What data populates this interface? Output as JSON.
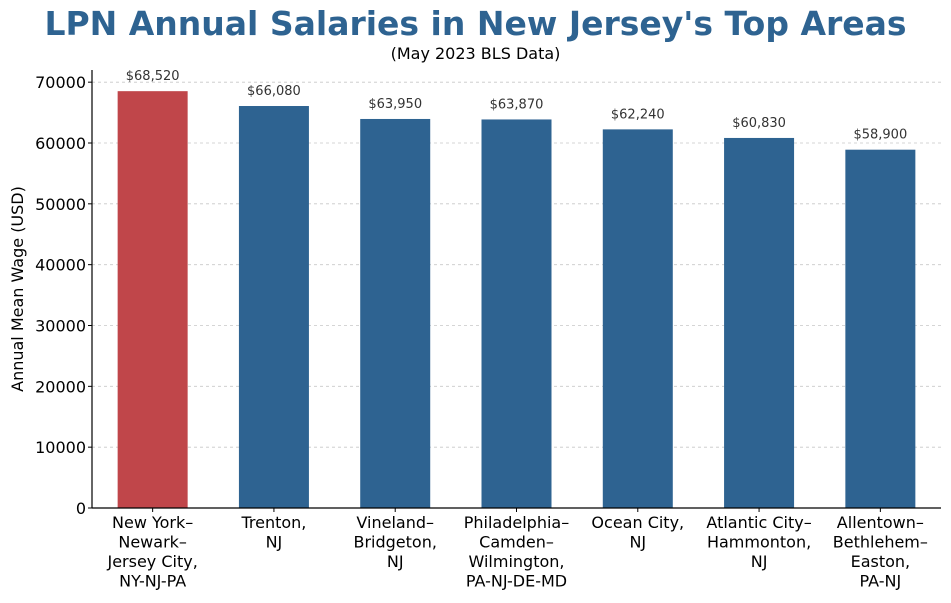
{
  "title": "LPN Annual Salaries in New Jersey's Top Areas",
  "subtitle": "(May 2023 BLS Data)",
  "chart_data": {
    "type": "bar",
    "categories": [
      [
        "New York–",
        "Newark–",
        "Jersey City,",
        "NY-NJ-PA"
      ],
      [
        "Trenton,",
        "NJ"
      ],
      [
        "Vineland–",
        "Bridgeton,",
        "NJ"
      ],
      [
        "Philadelphia–",
        "Camden–",
        "Wilmington,",
        "PA-NJ-DE-MD"
      ],
      [
        "Ocean City,",
        "NJ"
      ],
      [
        "Atlantic City–",
        "Hammonton,",
        "NJ"
      ],
      [
        "Allentown–",
        "Bethlehem–",
        "Easton,",
        "PA-NJ"
      ]
    ],
    "values": [
      68520,
      66080,
      63950,
      63870,
      62240,
      60830,
      58900
    ],
    "data_labels": [
      "$68,520",
      "$66,080",
      "$63,950",
      "$63,870",
      "$62,240",
      "$60,830",
      "$58,900"
    ],
    "ylabel": "Annual Mean Wage (USD)",
    "xlabel": "",
    "ylim": [
      0,
      72000
    ],
    "yticks": [
      0,
      10000,
      20000,
      30000,
      40000,
      50000,
      60000,
      70000
    ],
    "grid": "horizontal dashed",
    "highlight_index": 0,
    "colors": {
      "bar": "#2e6391",
      "highlight": "#c0464a",
      "grid": "#c8c8c8",
      "axis": "#000000"
    }
  }
}
